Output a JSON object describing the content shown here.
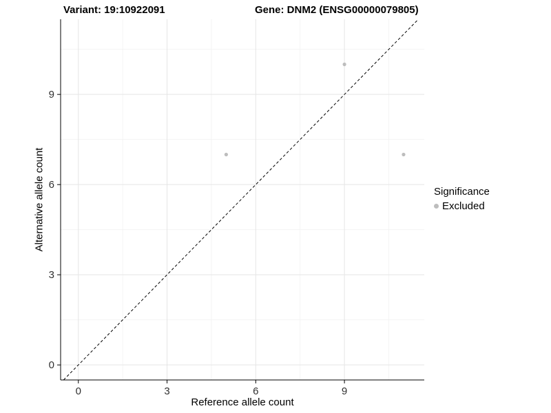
{
  "header": {
    "variant_title": "Variant: 19:10922091",
    "gene_title": "Gene: DNM2 (ENSG00000079805)"
  },
  "chart_data": {
    "type": "scatter",
    "title": "Variant: 19:10922091 / Gene: DNM2 (ENSG00000079805)",
    "xlabel": "Reference allele count",
    "ylabel": "Alternative allele count",
    "xlim": [
      -0.6,
      11.7
    ],
    "ylim": [
      -0.5,
      11.5
    ],
    "xticks": [
      0,
      3,
      6,
      9
    ],
    "yticks": [
      0,
      3,
      6,
      9
    ],
    "minor_xticks": [
      1.5,
      4.5,
      7.5,
      10.5
    ],
    "minor_yticks": [
      1.5,
      4.5,
      7.5,
      10.5
    ],
    "grid": true,
    "points": [
      {
        "x": 5,
        "y": 7,
        "significance": "Excluded"
      },
      {
        "x": 9,
        "y": 10,
        "significance": "Excluded"
      },
      {
        "x": 11,
        "y": 7,
        "significance": "Excluded"
      }
    ],
    "identity_line": {
      "style": "dashed",
      "slope": 1,
      "intercept": 0,
      "color": "#000000"
    },
    "point_color": "#bdbdbd",
    "colors": {
      "grid_major": "#e5e5e5",
      "grid_minor": "#f2f2f2",
      "axis": "#000000",
      "tick_label": "#303030"
    },
    "legend": {
      "title": "Significance",
      "position": "right",
      "items": [
        {
          "label": "Excluded",
          "color": "#bdbdbd"
        }
      ]
    }
  }
}
